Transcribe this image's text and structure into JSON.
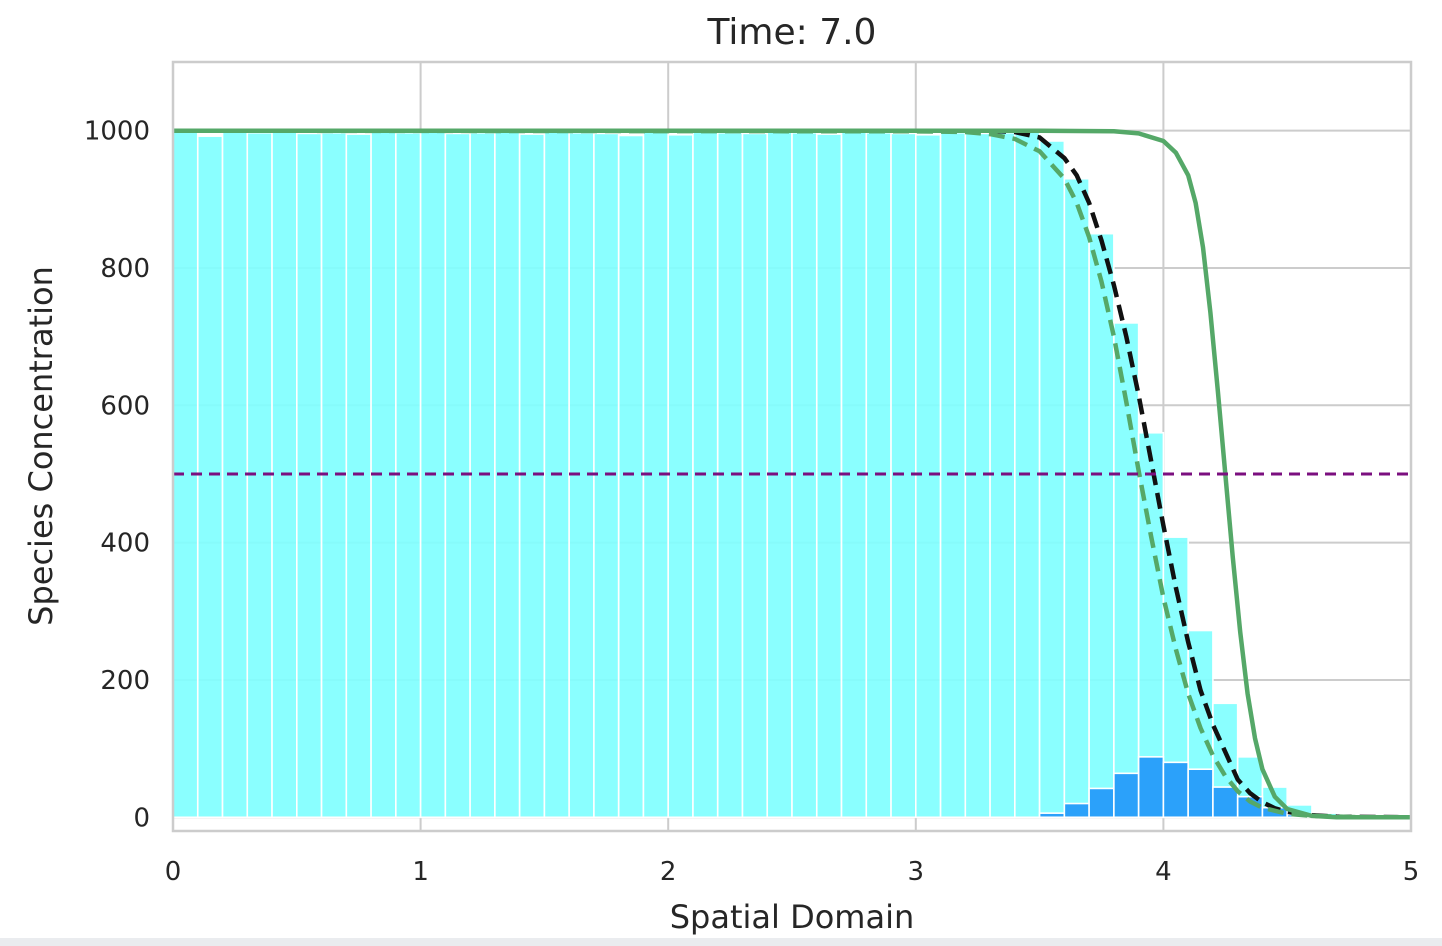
{
  "chart_data": {
    "type": "bar",
    "title": "Time: 7.0",
    "xlabel": "Spatial Domain",
    "ylabel": "Species Concentration",
    "xlim": [
      0,
      5
    ],
    "ylim": [
      -20,
      1100
    ],
    "xticks": [
      0,
      1,
      2,
      3,
      4,
      5
    ],
    "yticks": [
      0,
      200,
      400,
      600,
      800,
      1000
    ],
    "grid": true,
    "bin_width": 0.1,
    "x": [
      0.0,
      0.1,
      0.2,
      0.3,
      0.4,
      0.5,
      0.6,
      0.7,
      0.8,
      0.9,
      1.0,
      1.1,
      1.2,
      1.3,
      1.4,
      1.5,
      1.6,
      1.7,
      1.8,
      1.9,
      2.0,
      2.1,
      2.2,
      2.3,
      2.4,
      2.5,
      2.6,
      2.7,
      2.8,
      2.9,
      3.0,
      3.1,
      3.2,
      3.3,
      3.4,
      3.5,
      3.6,
      3.7,
      3.8,
      3.9,
      4.0,
      4.1,
      4.2,
      4.3,
      4.4,
      4.5,
      4.6,
      4.7,
      4.8,
      4.9
    ],
    "series": [
      {
        "color": "#80ffff",
        "values": [
          1000,
          992,
          998,
          997,
          998,
          996,
          997,
          995,
          998,
          997,
          998,
          996,
          997,
          998,
          995,
          998,
          997,
          996,
          993,
          998,
          994,
          998,
          997,
          996,
          998,
          997,
          995,
          998,
          997,
          996,
          994,
          997,
          996,
          997,
          998,
          985,
          930,
          850,
          720,
          560,
          408,
          272,
          166,
          88,
          44,
          18,
          6,
          2,
          1,
          0
        ]
      },
      {
        "color": "#2ba1fa",
        "values": [
          0,
          0,
          0,
          0,
          0,
          0,
          0,
          0,
          0,
          0,
          0,
          0,
          0,
          0,
          0,
          0,
          0,
          0,
          0,
          0,
          0,
          0,
          0,
          0,
          0,
          0,
          0,
          0,
          0,
          0,
          0,
          0,
          0,
          0,
          0,
          6,
          20,
          42,
          64,
          88,
          80,
          70,
          44,
          30,
          14,
          4,
          1,
          0,
          0,
          0
        ]
      }
    ],
    "lines": [
      {
        "style": "dashed",
        "color": "#111111",
        "x": [
          3.3,
          3.4,
          3.5,
          3.6,
          3.65,
          3.7,
          3.75,
          3.8,
          3.85,
          3.9,
          3.95,
          4.0,
          4.05,
          4.1,
          4.15,
          4.2,
          4.25,
          4.3,
          4.35,
          4.4,
          4.45,
          4.5,
          4.55,
          4.6,
          4.7,
          5.0
        ],
        "y": [
          1000,
          998,
          990,
          960,
          935,
          895,
          840,
          775,
          700,
          615,
          520,
          425,
          335,
          255,
          185,
          135,
          95,
          55,
          35,
          22,
          13,
          8,
          5,
          3,
          1,
          0
        ]
      },
      {
        "style": "dashed",
        "color": "#55a868",
        "x": [
          0.0,
          3.0,
          3.2,
          3.3,
          3.4,
          3.5,
          3.6,
          3.65,
          3.7,
          3.75,
          3.8,
          3.85,
          3.9,
          3.95,
          4.0,
          4.05,
          4.1,
          4.15,
          4.2,
          4.25,
          4.3,
          4.35,
          4.4,
          4.5,
          4.6,
          4.8,
          5.0
        ],
        "y": [
          1000,
          999,
          998,
          995,
          988,
          970,
          930,
          895,
          845,
          780,
          700,
          605,
          505,
          410,
          320,
          245,
          180,
          130,
          90,
          60,
          38,
          23,
          14,
          5,
          2,
          0,
          0
        ]
      },
      {
        "style": "solid",
        "color": "#55a868",
        "x": [
          0.0,
          3.5,
          3.8,
          3.9,
          4.0,
          4.05,
          4.1,
          4.13,
          4.16,
          4.19,
          4.22,
          4.25,
          4.28,
          4.31,
          4.34,
          4.37,
          4.4,
          4.45,
          4.5,
          4.6,
          4.7,
          5.0
        ],
        "y": [
          1000,
          1000,
          999,
          996,
          985,
          968,
          935,
          895,
          830,
          735,
          620,
          500,
          380,
          270,
          180,
          115,
          70,
          30,
          12,
          2,
          0,
          0
        ]
      },
      {
        "style": "dashed",
        "color": "#7b0f7f",
        "x": [
          0,
          5
        ],
        "y": [
          500,
          500
        ]
      }
    ]
  }
}
